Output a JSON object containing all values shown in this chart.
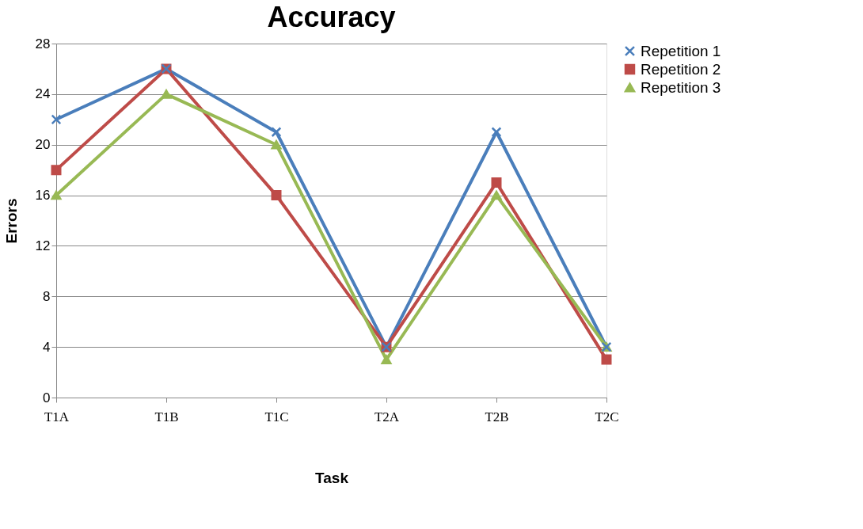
{
  "chart_data": {
    "type": "line",
    "title": "Accuracy",
    "xlabel": "Task",
    "ylabel": "Errors",
    "categories": [
      "T1A",
      "T1B",
      "T1C",
      "T2A",
      "T2B",
      "T2C"
    ],
    "series": [
      {
        "name": "Repetition 1",
        "color": "#4a7ebb",
        "marker": "cross",
        "values": [
          22,
          26,
          21,
          4,
          21,
          4
        ]
      },
      {
        "name": "Repetition 2",
        "color": "#be4b48",
        "marker": "square",
        "values": [
          18,
          26,
          16,
          4,
          17,
          3
        ]
      },
      {
        "name": "Repetition 3",
        "color": "#98b954",
        "marker": "triangle",
        "values": [
          16,
          24,
          20,
          3,
          16,
          4
        ]
      }
    ],
    "ylim": [
      0,
      28
    ],
    "yticks": [
      0,
      4,
      8,
      12,
      16,
      20,
      24,
      28
    ],
    "grid": "y",
    "legend": "right",
    "line_style": "solid"
  }
}
